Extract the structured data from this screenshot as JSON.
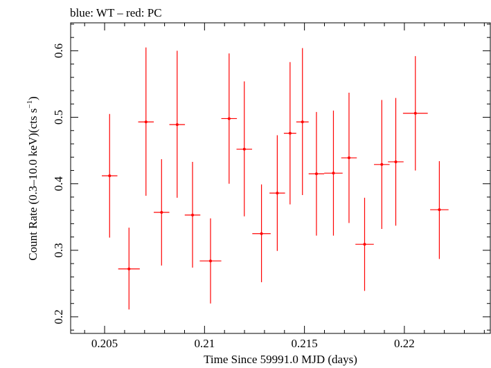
{
  "header": {
    "title": "blue: WT – red: PC"
  },
  "colors": {
    "pc_series": "#ff0000",
    "wt_series": "#0000ff",
    "axis": "#000000",
    "background": "#ffffff"
  },
  "chart_data": {
    "type": "scatter",
    "title": "blue: WT – red: PC",
    "xlabel": "Time Since 59991.0 MJD (days)",
    "ylabel_main": "Count Rate (0.3–10.0 keV)(cts s",
    "ylabel_sup": "−1",
    "ylabel_tail": ")",
    "xlim": [
      0.2033,
      0.2243
    ],
    "ylim": [
      0.175,
      0.642
    ],
    "xticks": [
      0.205,
      0.21,
      0.215,
      0.22
    ],
    "xtick_labels": [
      "0.205",
      "0.21",
      "0.215",
      "0.22"
    ],
    "yticks": [
      0.2,
      0.3,
      0.4,
      0.5,
      0.6
    ],
    "ytick_labels": [
      "0.2",
      "0.3",
      "0.4",
      "0.5",
      "0.6"
    ],
    "grid": false,
    "series": [
      {
        "name": "PC",
        "points": [
          {
            "x": 0.20525,
            "xerr": 0.00039,
            "y": 0.412,
            "yerr_low": 0.093,
            "yerr_high": 0.093
          },
          {
            "x": 0.20622,
            "xerr": 0.00054,
            "y": 0.272,
            "yerr_low": 0.061,
            "yerr_high": 0.062
          },
          {
            "x": 0.20707,
            "xerr": 0.00039,
            "y": 0.493,
            "yerr_low": 0.111,
            "yerr_high": 0.112
          },
          {
            "x": 0.20785,
            "xerr": 0.00039,
            "y": 0.357,
            "yerr_low": 0.08,
            "yerr_high": 0.08
          },
          {
            "x": 0.20863,
            "xerr": 0.00039,
            "y": 0.489,
            "yerr_low": 0.11,
            "yerr_high": 0.111
          },
          {
            "x": 0.2094,
            "xerr": 0.00039,
            "y": 0.353,
            "yerr_low": 0.079,
            "yerr_high": 0.08
          },
          {
            "x": 0.2103,
            "xerr": 0.00054,
            "y": 0.284,
            "yerr_low": 0.064,
            "yerr_high": 0.064
          },
          {
            "x": 0.21123,
            "xerr": 0.00039,
            "y": 0.498,
            "yerr_low": 0.098,
            "yerr_high": 0.098
          },
          {
            "x": 0.21199,
            "xerr": 0.00039,
            "y": 0.452,
            "yerr_low": 0.101,
            "yerr_high": 0.102
          },
          {
            "x": 0.21285,
            "xerr": 0.00046,
            "y": 0.325,
            "yerr_low": 0.073,
            "yerr_high": 0.074
          },
          {
            "x": 0.21364,
            "xerr": 0.00039,
            "y": 0.386,
            "yerr_low": 0.087,
            "yerr_high": 0.087
          },
          {
            "x": 0.21428,
            "xerr": 0.00031,
            "y": 0.476,
            "yerr_low": 0.107,
            "yerr_high": 0.107
          },
          {
            "x": 0.2149,
            "xerr": 0.00031,
            "y": 0.493,
            "yerr_low": 0.11,
            "yerr_high": 0.111
          },
          {
            "x": 0.2156,
            "xerr": 0.00039,
            "y": 0.415,
            "yerr_low": 0.093,
            "yerr_high": 0.093
          },
          {
            "x": 0.21645,
            "xerr": 0.00046,
            "y": 0.416,
            "yerr_low": 0.094,
            "yerr_high": 0.094
          },
          {
            "x": 0.21723,
            "xerr": 0.00039,
            "y": 0.439,
            "yerr_low": 0.098,
            "yerr_high": 0.098
          },
          {
            "x": 0.21801,
            "xerr": 0.00046,
            "y": 0.309,
            "yerr_low": 0.07,
            "yerr_high": 0.07
          },
          {
            "x": 0.21887,
            "xerr": 0.00039,
            "y": 0.429,
            "yerr_low": 0.097,
            "yerr_high": 0.097
          },
          {
            "x": 0.21957,
            "xerr": 0.00039,
            "y": 0.433,
            "yerr_low": 0.096,
            "yerr_high": 0.096
          },
          {
            "x": 0.22055,
            "xerr": 0.00062,
            "y": 0.506,
            "yerr_low": 0.086,
            "yerr_high": 0.086
          },
          {
            "x": 0.22175,
            "xerr": 0.00046,
            "y": 0.361,
            "yerr_low": 0.074,
            "yerr_high": 0.073
          }
        ]
      }
    ]
  }
}
